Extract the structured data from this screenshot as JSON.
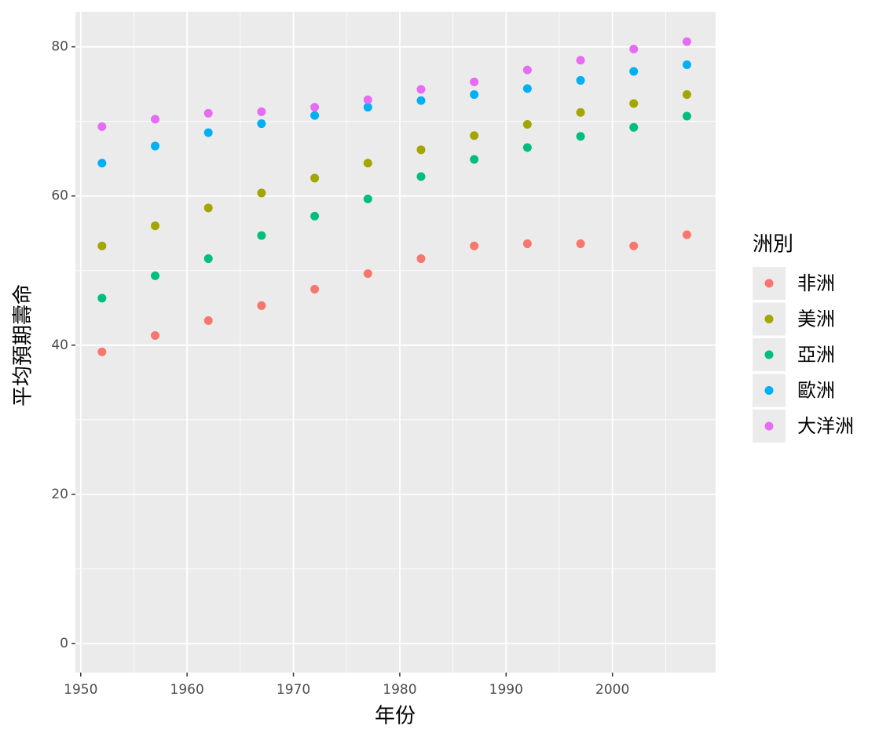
{
  "chart_data": {
    "type": "scatter",
    "x_label": "年份",
    "y_label": "平均預期壽命",
    "legend_title": "洲別",
    "x": [
      1952,
      1957,
      1962,
      1967,
      1972,
      1977,
      1982,
      1987,
      1992,
      1997,
      2002,
      2007
    ],
    "series": [
      {
        "name": "非洲",
        "color": "#f8766d",
        "values": [
          39.1,
          41.3,
          43.3,
          45.3,
          47.5,
          49.6,
          51.6,
          53.3,
          53.6,
          53.6,
          53.3,
          54.8
        ]
      },
      {
        "name": "美洲",
        "color": "#a3a500",
        "values": [
          53.3,
          56.0,
          58.4,
          60.4,
          62.4,
          64.4,
          66.2,
          68.1,
          69.6,
          71.2,
          72.4,
          73.6
        ]
      },
      {
        "name": "亞洲",
        "color": "#00bf7d",
        "values": [
          46.3,
          49.3,
          51.6,
          54.7,
          57.3,
          59.6,
          62.6,
          64.9,
          66.5,
          68.0,
          69.2,
          70.7
        ]
      },
      {
        "name": "歐洲",
        "color": "#00b0f6",
        "values": [
          64.4,
          66.7,
          68.5,
          69.7,
          70.8,
          71.9,
          72.8,
          73.6,
          74.4,
          75.5,
          76.7,
          77.6
        ]
      },
      {
        "name": "大洋洲",
        "color": "#e76bf3",
        "values": [
          69.3,
          70.3,
          71.1,
          71.3,
          71.9,
          72.9,
          74.3,
          75.3,
          76.9,
          78.2,
          79.7,
          80.7
        ]
      }
    ],
    "xlim": [
      1949.5,
      2009.7
    ],
    "xticks": [
      1950,
      1960,
      1970,
      1980,
      1990,
      2000
    ],
    "ylim": [
      -3.9,
      84.7
    ],
    "yticks": [
      0,
      20,
      40,
      60,
      80
    ],
    "grid": true,
    "legend": "right"
  }
}
